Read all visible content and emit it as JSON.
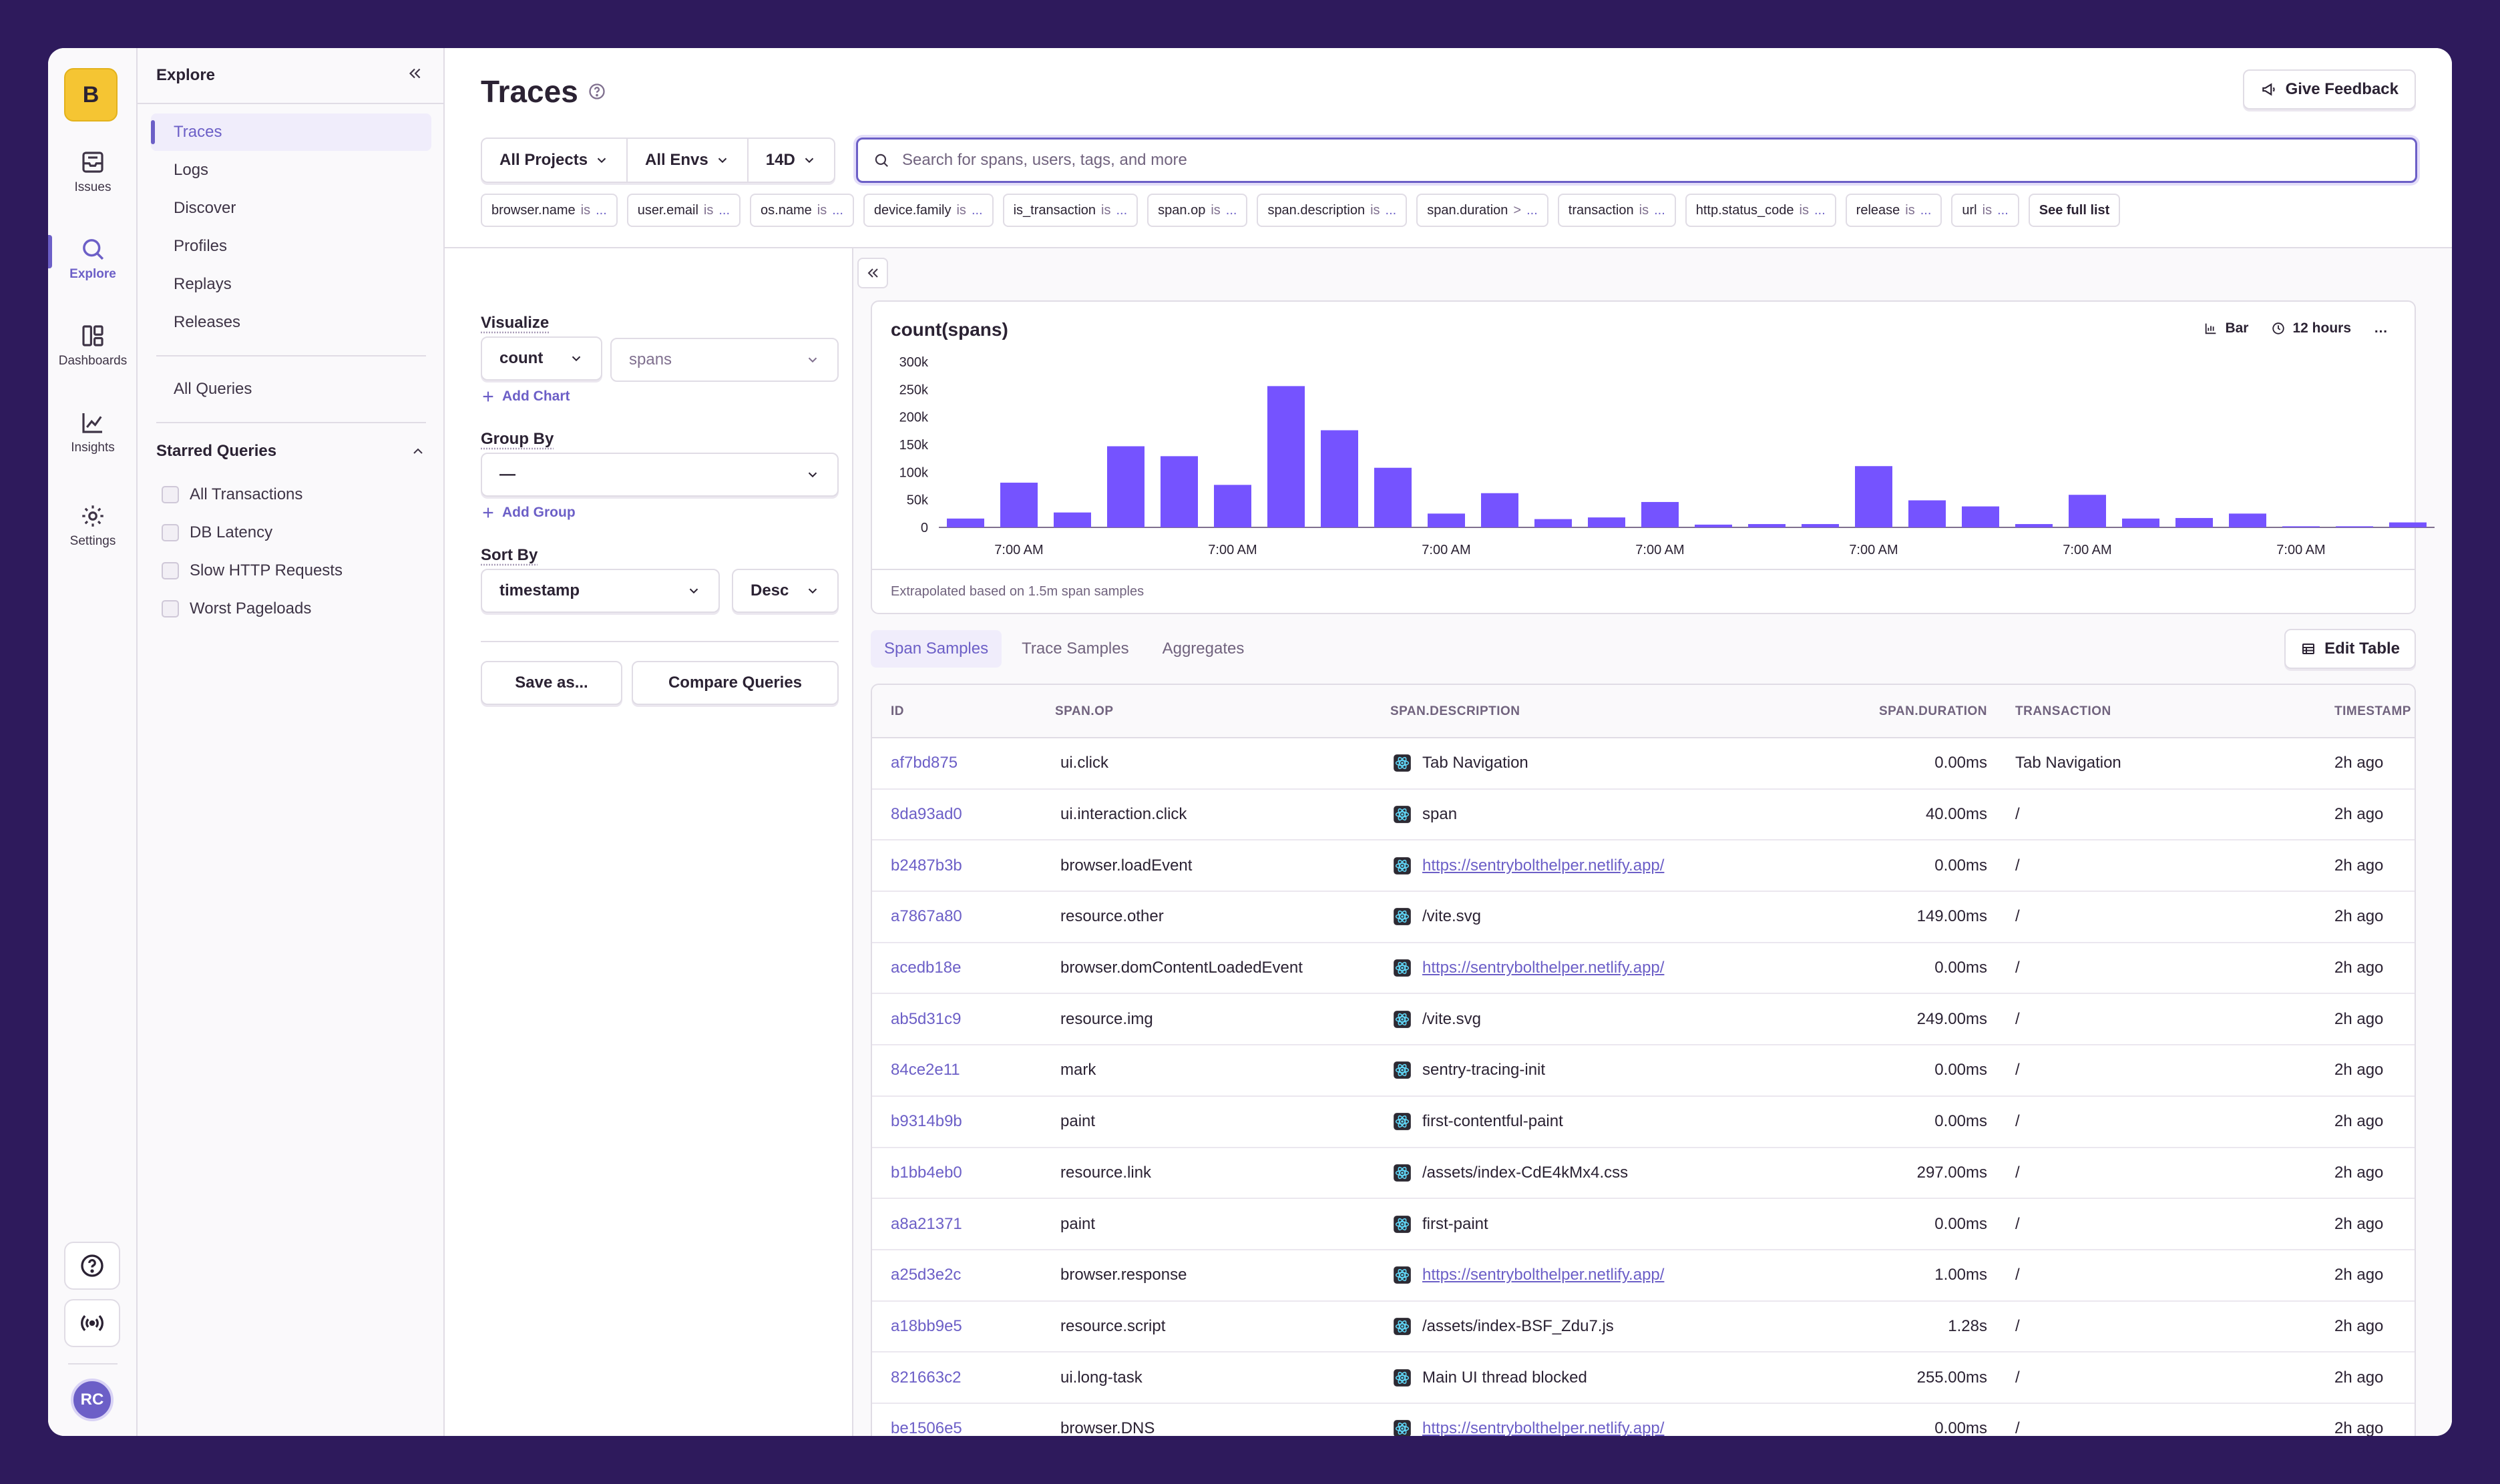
{
  "org": {
    "initial": "B"
  },
  "rail": {
    "items": [
      {
        "label": "Issues",
        "icon": "issues-icon"
      },
      {
        "label": "Explore",
        "icon": "search-icon",
        "active": true
      },
      {
        "label": "Dashboards",
        "icon": "dashboards-icon"
      },
      {
        "label": "Insights",
        "icon": "insights-icon"
      },
      {
        "label": "Settings",
        "icon": "gear-icon"
      }
    ],
    "avatar_initials": "RC"
  },
  "subnav": {
    "title": "Explore",
    "links": [
      "Traces",
      "Logs",
      "Discover",
      "Profiles",
      "Replays",
      "Releases"
    ],
    "all_queries": "All Queries",
    "starred_title": "Starred Queries",
    "starred": [
      "All Transactions",
      "DB Latency",
      "Slow HTTP Requests",
      "Worst Pageloads"
    ]
  },
  "header": {
    "title": "Traces",
    "feedback_label": "Give Feedback",
    "filters": [
      "All Projects",
      "All Envs",
      "14D"
    ],
    "search_placeholder": "Search for spans, users, tags, and more",
    "keys": [
      {
        "name": "browser.name",
        "op": "is"
      },
      {
        "name": "user.email",
        "op": "is"
      },
      {
        "name": "os.name",
        "op": "is"
      },
      {
        "name": "device.family",
        "op": "is"
      },
      {
        "name": "is_transaction",
        "op": "is"
      },
      {
        "name": "span.op",
        "op": "is"
      },
      {
        "name": "span.description",
        "op": "is"
      },
      {
        "name": "span.duration",
        "op": ">"
      },
      {
        "name": "transaction",
        "op": "is"
      },
      {
        "name": "http.status_code",
        "op": "is"
      },
      {
        "name": "release",
        "op": "is"
      },
      {
        "name": "url",
        "op": "is"
      }
    ],
    "ellipsis": "...",
    "see_full_list": "See full list"
  },
  "controls": {
    "visualize_label": "Visualize",
    "aggregate": "count",
    "field": "spans",
    "add_chart": "Add Chart",
    "group_by_label": "Group By",
    "group_by_value": "—",
    "add_group": "Add Group",
    "sort_by_label": "Sort By",
    "sort_field": "timestamp",
    "sort_dir": "Desc",
    "save_as": "Save as...",
    "compare": "Compare Queries"
  },
  "chart_panel": {
    "title": "count(spans)",
    "type_label": "Bar",
    "interval_label": "12 hours",
    "more": "…",
    "footer": "Extrapolated based on 1.5m span samples"
  },
  "chart_data": {
    "type": "bar",
    "title": "count(spans)",
    "color": "#7553ff",
    "ylim": [
      0,
      300000
    ],
    "yticks": [
      "300k",
      "250k",
      "200k",
      "150k",
      "100k",
      "50k",
      "0"
    ],
    "xtick_labels": [
      "7:00 AM",
      "7:00 AM",
      "7:00 AM",
      "7:00 AM",
      "7:00 AM",
      "7:00 AM",
      "7:00 AM"
    ],
    "xtick_bar_index": [
      1,
      5,
      9,
      13,
      17,
      21,
      25
    ],
    "values": [
      16000,
      81000,
      27000,
      147000,
      129000,
      77000,
      256000,
      176000,
      108000,
      25000,
      62000,
      15000,
      18000,
      46000,
      5000,
      6000,
      6000,
      111000,
      49000,
      38000,
      6000,
      59000,
      16000,
      17000,
      25000,
      2000,
      2000,
      9000
    ]
  },
  "results": {
    "tabs": [
      "Span Samples",
      "Trace Samples",
      "Aggregates"
    ],
    "edit_table": "Edit Table",
    "columns": [
      "ID",
      "SPAN.OP",
      "SPAN.DESCRIPTION",
      "SPAN.DURATION",
      "TRANSACTION",
      "TIMESTAMP"
    ],
    "rows": [
      {
        "id": "af7bd875",
        "op": "ui.click",
        "desc": "Tab Navigation",
        "link": false,
        "dur": "0.00ms",
        "tx": "Tab Navigation",
        "ts": "2h ago"
      },
      {
        "id": "8da93ad0",
        "op": "ui.interaction.click",
        "desc": "span",
        "link": false,
        "dur": "40.00ms",
        "tx": "/",
        "ts": "2h ago"
      },
      {
        "id": "b2487b3b",
        "op": "browser.loadEvent",
        "desc": "https://sentrybolthelper.netlify.app/",
        "link": true,
        "dur": "0.00ms",
        "tx": "/",
        "ts": "2h ago"
      },
      {
        "id": "a7867a80",
        "op": "resource.other",
        "desc": "/vite.svg",
        "link": false,
        "dur": "149.00ms",
        "tx": "/",
        "ts": "2h ago"
      },
      {
        "id": "acedb18e",
        "op": "browser.domContentLoadedEvent",
        "desc": "https://sentrybolthelper.netlify.app/",
        "link": true,
        "dur": "0.00ms",
        "tx": "/",
        "ts": "2h ago"
      },
      {
        "id": "ab5d31c9",
        "op": "resource.img",
        "desc": "/vite.svg",
        "link": false,
        "dur": "249.00ms",
        "tx": "/",
        "ts": "2h ago"
      },
      {
        "id": "84ce2e11",
        "op": "mark",
        "desc": "sentry-tracing-init",
        "link": false,
        "dur": "0.00ms",
        "tx": "/",
        "ts": "2h ago"
      },
      {
        "id": "b9314b9b",
        "op": "paint",
        "desc": "first-contentful-paint",
        "link": false,
        "dur": "0.00ms",
        "tx": "/",
        "ts": "2h ago"
      },
      {
        "id": "b1bb4eb0",
        "op": "resource.link",
        "desc": "/assets/index-CdE4kMx4.css",
        "link": false,
        "dur": "297.00ms",
        "tx": "/",
        "ts": "2h ago"
      },
      {
        "id": "a8a21371",
        "op": "paint",
        "desc": "first-paint",
        "link": false,
        "dur": "0.00ms",
        "tx": "/",
        "ts": "2h ago"
      },
      {
        "id": "a25d3e2c",
        "op": "browser.response",
        "desc": "https://sentrybolthelper.netlify.app/",
        "link": true,
        "dur": "1.00ms",
        "tx": "/",
        "ts": "2h ago"
      },
      {
        "id": "a18bb9e5",
        "op": "resource.script",
        "desc": "/assets/index-BSF_Zdu7.js",
        "link": false,
        "dur": "1.28s",
        "tx": "/",
        "ts": "2h ago"
      },
      {
        "id": "821663c2",
        "op": "ui.long-task",
        "desc": "Main UI thread blocked",
        "link": false,
        "dur": "255.00ms",
        "tx": "/",
        "ts": "2h ago"
      },
      {
        "id": "be1506e5",
        "op": "browser.DNS",
        "desc": "https://sentrybolthelper.netlify.app/",
        "link": true,
        "dur": "0.00ms",
        "tx": "/",
        "ts": "2h ago"
      }
    ]
  }
}
